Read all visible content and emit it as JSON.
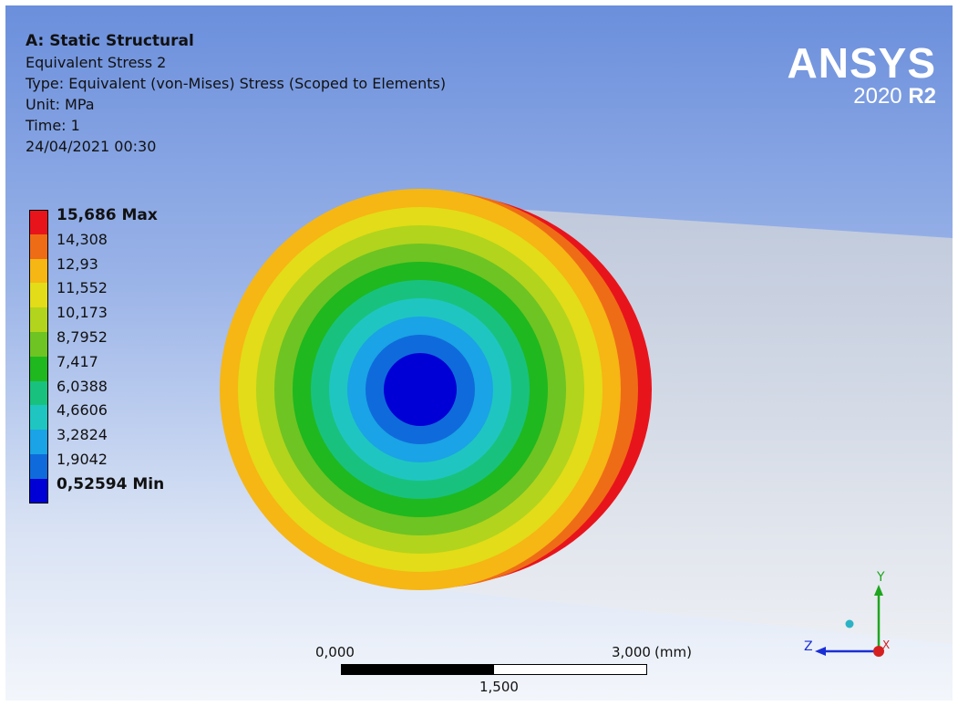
{
  "header": {
    "title": "A: Static Structural",
    "result_name": "Equivalent Stress 2",
    "type_line": "Type: Equivalent (von-Mises) Stress (Scoped to Elements)",
    "unit_line": "Unit: MPa",
    "time_line": "Time: 1",
    "datetime": "24/04/2021 00:30"
  },
  "brand": {
    "name": "ANSYS",
    "version_year": "2020",
    "version_release": "R2"
  },
  "legend": {
    "max_label": "15,686 Max",
    "min_label": "0,52594 Min",
    "levels": [
      "14,308",
      "12,93",
      "11,552",
      "10,173",
      "8,7952",
      "7,417",
      "6,0388",
      "4,6606",
      "3,2824",
      "1,9042"
    ],
    "colors": [
      "#e8141c",
      "#ef6c16",
      "#f6b614",
      "#e3dc18",
      "#b2d41d",
      "#6ec422",
      "#1fb81f",
      "#18c27e",
      "#1fc6c1",
      "#1aa3e6",
      "#0f6bdb",
      "#0000d6"
    ]
  },
  "scale_bar": {
    "left_label": "0,000",
    "right_label": "3,000",
    "unit": "(mm)",
    "mid_label": "1,500"
  },
  "triad": {
    "x_label": "X",
    "y_label": "Y",
    "z_label": "Z"
  }
}
